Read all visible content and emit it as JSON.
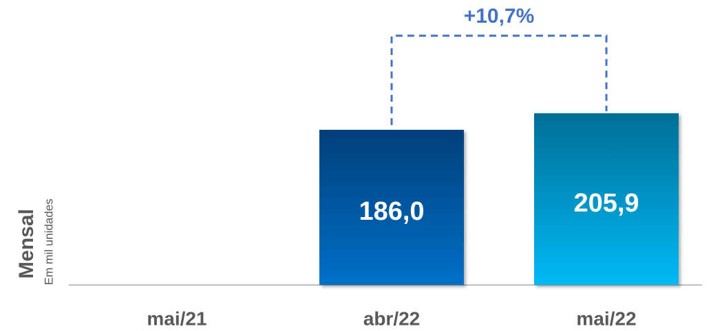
{
  "chart_data": {
    "type": "bar",
    "y_axis_title": "Mensal",
    "y_axis_subtitle": "Em mil unidades",
    "categories": [
      "mai/21",
      "abr/22",
      "mai/22"
    ],
    "values": [
      null,
      186.0,
      205.9
    ],
    "value_labels": [
      null,
      "186,0",
      "205,9"
    ],
    "colors": [
      null,
      [
        "#003f7a",
        "#0070c8"
      ],
      [
        "#006e96",
        "#00baf5"
      ]
    ],
    "ylim": [
      0,
      340
    ],
    "annotation": "+10,7%",
    "annotation_color": "#4472c4"
  }
}
